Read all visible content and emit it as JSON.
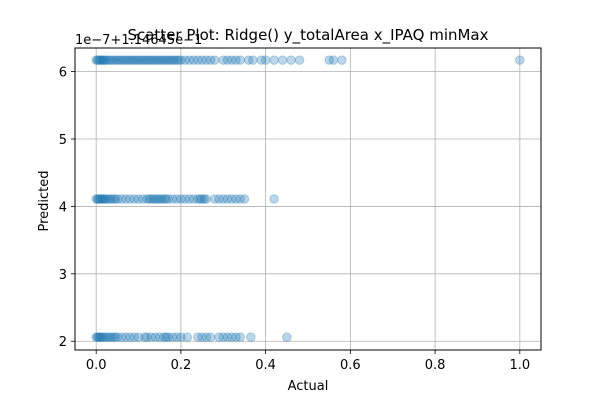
{
  "chart_data": {
    "type": "scatter",
    "title": "Scatter Plot: Ridge() y_totalArea x_IPAQ minMax",
    "xlabel": "Actual",
    "ylabel": "Predicted",
    "y_offset_text": "1e−7+1.14645e−1",
    "xlim": [
      -0.05,
      1.05
    ],
    "ylim": [
      1.87,
      6.35
    ],
    "x_ticks": [
      0.0,
      0.2,
      0.4,
      0.6,
      0.8,
      1.0
    ],
    "x_tick_labels": [
      "0.0",
      "0.2",
      "0.4",
      "0.6",
      "0.8",
      "1.0"
    ],
    "y_ticks": [
      2,
      3,
      4,
      5,
      6
    ],
    "y_tick_labels": [
      "2",
      "3",
      "4",
      "5",
      "6"
    ],
    "grid": true,
    "marker_color": "#1f77b4",
    "marker_alpha": 0.3,
    "series": [
      {
        "y": 6.17,
        "x": [
          0.0,
          0.003,
          0.006,
          0.009,
          0.012,
          0.015,
          0.018,
          0.021,
          0.025,
          0.03,
          0.035,
          0.04,
          0.045,
          0.05,
          0.055,
          0.06,
          0.065,
          0.07,
          0.075,
          0.08,
          0.085,
          0.09,
          0.095,
          0.1,
          0.105,
          0.11,
          0.115,
          0.12,
          0.125,
          0.13,
          0.135,
          0.14,
          0.145,
          0.15,
          0.155,
          0.16,
          0.165,
          0.17,
          0.175,
          0.18,
          0.185,
          0.19,
          0.195,
          0.2,
          0.21,
          0.22,
          0.23,
          0.24,
          0.25,
          0.26,
          0.27,
          0.28,
          0.3,
          0.31,
          0.32,
          0.33,
          0.34,
          0.36,
          0.37,
          0.39,
          0.4,
          0.42,
          0.44,
          0.46,
          0.48,
          0.55,
          0.56,
          0.58,
          1.0
        ]
      },
      {
        "y": 4.11,
        "x": [
          0.0,
          0.003,
          0.006,
          0.009,
          0.012,
          0.015,
          0.018,
          0.021,
          0.025,
          0.03,
          0.035,
          0.04,
          0.045,
          0.05,
          0.06,
          0.07,
          0.08,
          0.09,
          0.1,
          0.11,
          0.12,
          0.125,
          0.13,
          0.135,
          0.14,
          0.145,
          0.15,
          0.155,
          0.16,
          0.165,
          0.17,
          0.18,
          0.19,
          0.2,
          0.21,
          0.22,
          0.23,
          0.24,
          0.245,
          0.25,
          0.255,
          0.26,
          0.28,
          0.29,
          0.3,
          0.31,
          0.32,
          0.33,
          0.34,
          0.35,
          0.42
        ]
      },
      {
        "y": 2.06,
        "x": [
          0.0,
          0.003,
          0.006,
          0.009,
          0.012,
          0.015,
          0.02,
          0.025,
          0.03,
          0.035,
          0.04,
          0.045,
          0.05,
          0.06,
          0.07,
          0.08,
          0.09,
          0.1,
          0.115,
          0.12,
          0.13,
          0.14,
          0.15,
          0.16,
          0.165,
          0.17,
          0.18,
          0.19,
          0.2,
          0.215,
          0.24,
          0.25,
          0.26,
          0.27,
          0.29,
          0.3,
          0.31,
          0.32,
          0.33,
          0.34,
          0.365,
          0.45
        ]
      }
    ]
  }
}
